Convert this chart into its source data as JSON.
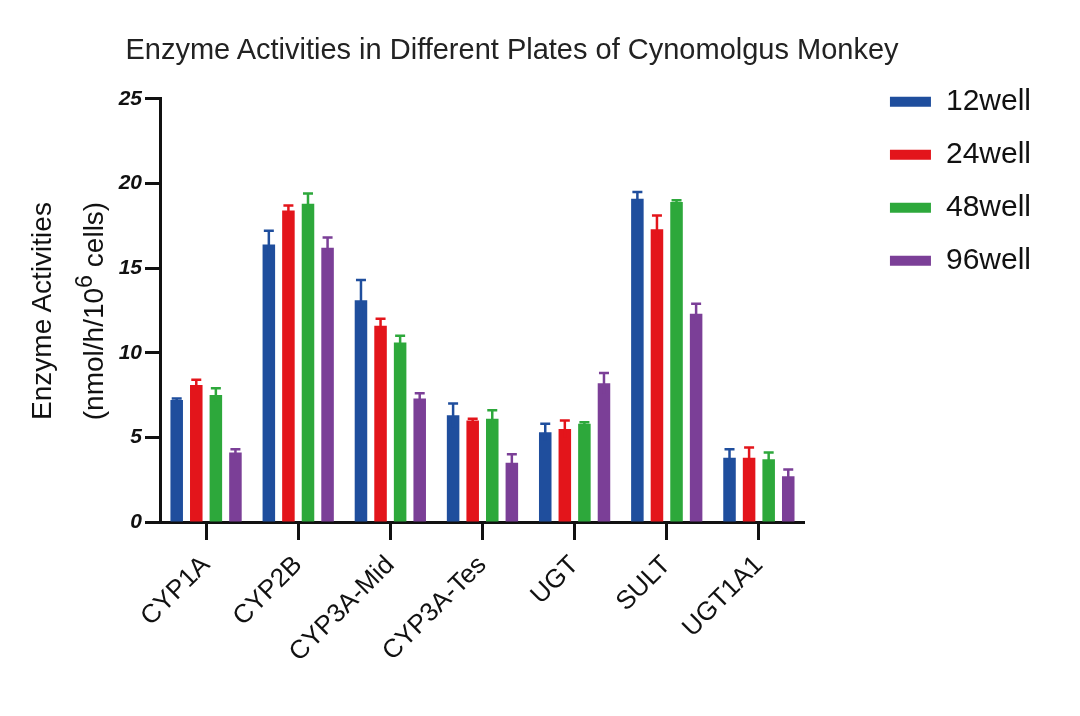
{
  "chart_data": {
    "type": "bar",
    "title": "Enzyme Activities in Different Plates of Cynomolgus Monkey",
    "ylabel": "Enzyme Activities (nmol/h/10$^{6}$ cells)",
    "categories": [
      "CYP1A",
      "CYP2B",
      "CYP3A-Mid",
      "CYP3A-Tes",
      "UGT",
      "SULT",
      "UGT1A1"
    ],
    "series": [
      {
        "name": "12well",
        "color": "#1f4e9d",
        "values": [
          7.2,
          16.4,
          13.1,
          6.3,
          5.3,
          19.1,
          3.8
        ],
        "errors": [
          0.1,
          0.8,
          1.2,
          0.7,
          0.5,
          0.4,
          0.5
        ]
      },
      {
        "name": "24well",
        "color": "#e3151b",
        "values": [
          8.1,
          18.4,
          11.6,
          6.0,
          5.5,
          17.3,
          3.8
        ],
        "errors": [
          0.3,
          0.3,
          0.4,
          0.1,
          0.5,
          0.8,
          0.6
        ]
      },
      {
        "name": "48well",
        "color": "#2da83b",
        "values": [
          7.5,
          18.8,
          10.6,
          6.1,
          5.8,
          18.9,
          3.7
        ],
        "errors": [
          0.4,
          0.6,
          0.4,
          0.5,
          0.1,
          0.1,
          0.4
        ]
      },
      {
        "name": "96well",
        "color": "#7b3f97",
        "values": [
          4.1,
          16.2,
          7.3,
          3.5,
          8.2,
          12.3,
          2.7
        ],
        "errors": [
          0.2,
          0.6,
          0.3,
          0.5,
          0.6,
          0.6,
          0.4
        ]
      }
    ],
    "ylim": [
      0,
      25
    ],
    "yticks": [
      0,
      5,
      10,
      15,
      20,
      25
    ],
    "grid": false,
    "legend": "top right"
  }
}
